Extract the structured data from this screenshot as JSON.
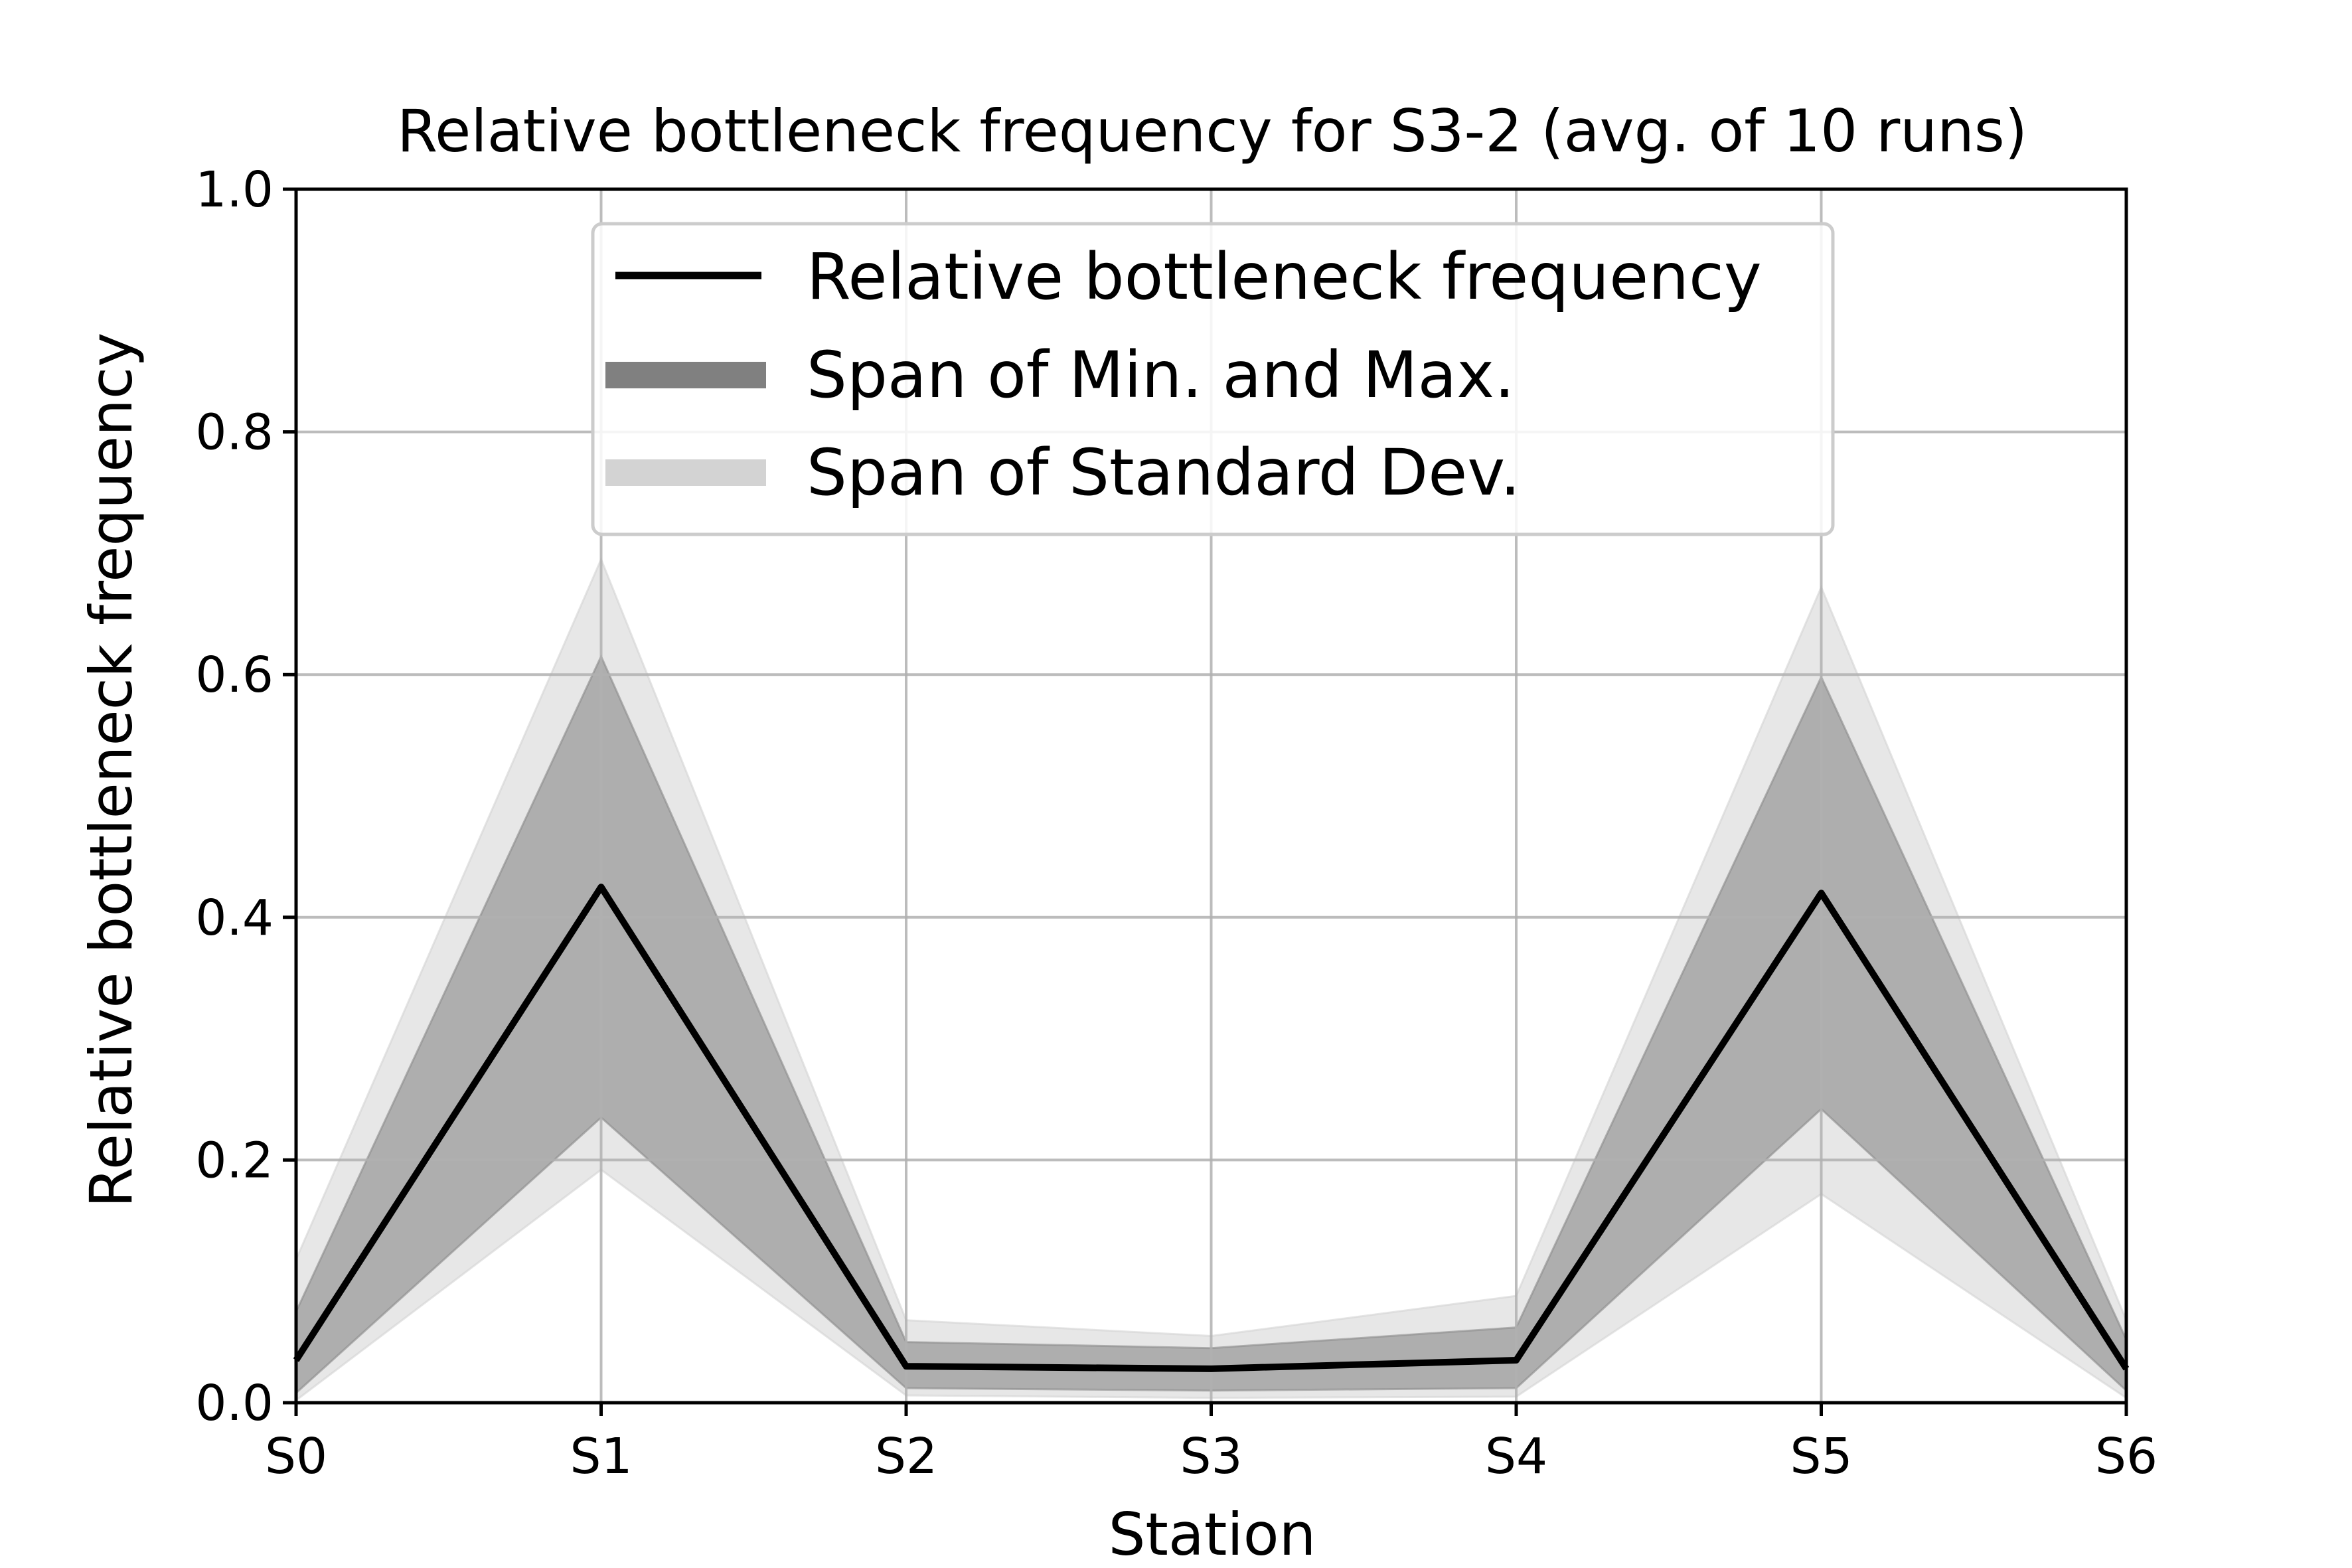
{
  "chart_data": {
    "type": "line",
    "title": "Relative bottleneck frequency for S3-2 (avg. of 10 runs)",
    "xlabel": "Station",
    "ylabel": "Relative bottleneck frequency",
    "categories": [
      "S0",
      "S1",
      "S2",
      "S3",
      "S4",
      "S5",
      "S6"
    ],
    "ylim": [
      0.0,
      1.0
    ],
    "yticks": [
      "0.0",
      "0.2",
      "0.4",
      "0.6",
      "0.8",
      "1.0"
    ],
    "ytick_values": [
      0.0,
      0.2,
      0.4,
      0.6,
      0.8,
      1.0
    ],
    "grid": true,
    "legend_position": "upper center",
    "series": [
      {
        "name": "Relative bottleneck frequency",
        "kind": "line",
        "values": [
          0.035,
          0.425,
          0.03,
          0.028,
          0.035,
          0.42,
          0.028
        ],
        "color": "#000000"
      },
      {
        "name": "Span of Min. and Max.",
        "kind": "band",
        "lower": [
          0.008,
          0.235,
          0.012,
          0.01,
          0.012,
          0.242,
          0.01
        ],
        "upper": [
          0.075,
          0.615,
          0.05,
          0.045,
          0.062,
          0.598,
          0.052
        ],
        "color": "#808080"
      },
      {
        "name": "Span of Standard Dev.",
        "kind": "band",
        "lower": [
          0.002,
          0.192,
          0.006,
          0.004,
          0.005,
          0.172,
          0.004
        ],
        "upper": [
          0.118,
          0.695,
          0.068,
          0.055,
          0.088,
          0.672,
          0.068
        ],
        "color": "#d3d3d3"
      }
    ]
  }
}
